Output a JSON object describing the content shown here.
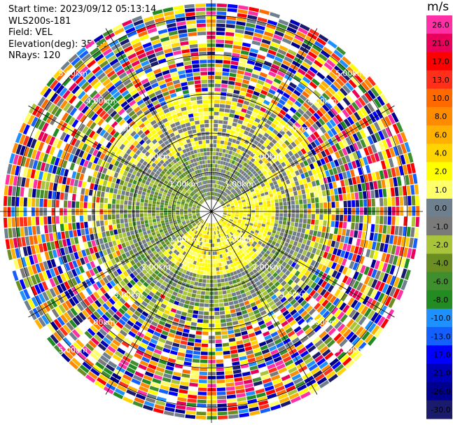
{
  "info": {
    "start_time": "Start time: 2023/09/12 05:13:14",
    "instrument": "WLS200s-181",
    "field": "Field: VEL",
    "elevation": "Elevation(deg): 35.30",
    "nrays": "NRays: 120"
  },
  "colorbar": {
    "unit": "m/s",
    "ticks": [
      "26.0",
      "21.0",
      "17.0",
      "13.0",
      "10.0",
      "8.0",
      "6.0",
      "4.0",
      "2.0",
      "1.0",
      "0.0",
      "-1.0",
      "-2.0",
      "-4.0",
      "-6.0",
      "-8.0",
      "-10.0",
      "-13.0",
      "-17.0",
      "-21.0",
      "-26.0",
      "-30.0"
    ],
    "colors": [
      "#ff2fa5",
      "#e8005a",
      "#ff0000",
      "#ff2f1a",
      "#ff6a00",
      "#ff8c00",
      "#ffb000",
      "#ffd400",
      "#ffff00",
      "#ffff6a",
      "#6e7f8e",
      "#7a7a7a",
      "#a8c43a",
      "#6b8e23",
      "#3f8f2f",
      "#228b22",
      "#1e90ff",
      "#1460ff",
      "#0000ff",
      "#0000b8",
      "#000090",
      "#1b1b6e"
    ]
  },
  "chart_data": {
    "type": "polar_ppi",
    "field": "VEL",
    "units": "m/s",
    "range_rings_km": [
      1.0,
      2.0,
      3.0,
      4.0,
      5.0
    ],
    "range_ring_labels": [
      "1.00km",
      "2.00km",
      "3.00km",
      "4.00km",
      "5.00km"
    ],
    "max_range_km": 5.4,
    "n_rays": 120,
    "vmin": -30.0,
    "vmax": 26.0,
    "description_of_pattern": "near-range gates (<1.5 km) mostly -1 to +4 m/s (yellow northeast/south, green west), 1.5-3 km mixed gray/green/yellow, beyond ~3 km noisy multicolor gates spanning -30 to 26 m/s"
  }
}
